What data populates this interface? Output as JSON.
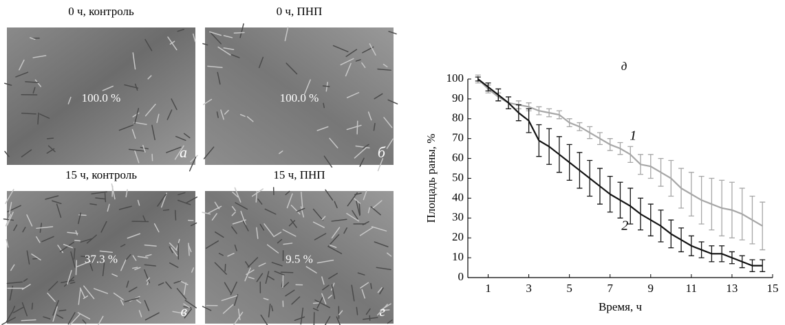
{
  "panels": [
    {
      "title": "0 ч, контроль",
      "area_label": "100.0 %",
      "letter": "а"
    },
    {
      "title": "0 ч, ПНП",
      "area_label": "100.0 %",
      "letter": "б"
    },
    {
      "title": "15 ч, контроль",
      "area_label": "37.3 %",
      "letter": "в"
    },
    {
      "title": "15 ч, ПНП",
      "area_label": "9.5 %",
      "letter": "г"
    }
  ],
  "chart_data": {
    "type": "line",
    "panel_letter": "д",
    "xlabel": "Время, ч",
    "ylabel": "Площадь раны, %",
    "x": [
      0.5,
      1,
      1.5,
      2,
      2.5,
      3,
      3.5,
      4,
      4.5,
      5,
      5.5,
      6,
      6.5,
      7,
      7.5,
      8,
      8.5,
      9,
      9.5,
      10,
      10.5,
      11,
      11.5,
      12,
      12.5,
      13,
      13.5,
      14,
      14.5
    ],
    "series": [
      {
        "name": "1",
        "color": "#a6a6a6",
        "values": [
          100,
          95,
          91,
          88,
          87,
          86,
          84,
          83,
          82,
          78,
          76,
          73,
          70,
          67,
          65,
          62,
          57,
          56,
          53,
          50,
          45,
          42,
          39,
          37,
          35,
          34,
          32,
          29,
          26
        ],
        "errors": [
          2,
          2,
          2,
          3,
          2,
          2,
          2,
          2,
          2,
          2,
          2,
          3,
          3,
          3,
          3,
          4,
          5,
          6,
          7,
          9,
          10,
          11,
          12,
          13,
          14,
          14,
          13,
          12,
          12
        ]
      },
      {
        "name": "2",
        "color": "#111111",
        "values": [
          100,
          96,
          92,
          88,
          83,
          79,
          69,
          66,
          62,
          58,
          54,
          50,
          46,
          42,
          39,
          36,
          32,
          29,
          26,
          22,
          19,
          16,
          14,
          12,
          12,
          10,
          8,
          6,
          6
        ],
        "errors": [
          1,
          2,
          3,
          3,
          4,
          6,
          8,
          9,
          9,
          9,
          9,
          9,
          9,
          9,
          9,
          9,
          8,
          8,
          8,
          7,
          6,
          5,
          4,
          4,
          4,
          3,
          3,
          3,
          3
        ]
      }
    ],
    "xlim": [
      0,
      15
    ],
    "ylim": [
      0,
      100
    ],
    "xticks": [
      1,
      3,
      5,
      7,
      9,
      11,
      13,
      15
    ],
    "yticks": [
      0,
      10,
      20,
      30,
      40,
      50,
      60,
      70,
      80,
      90,
      100
    ]
  }
}
